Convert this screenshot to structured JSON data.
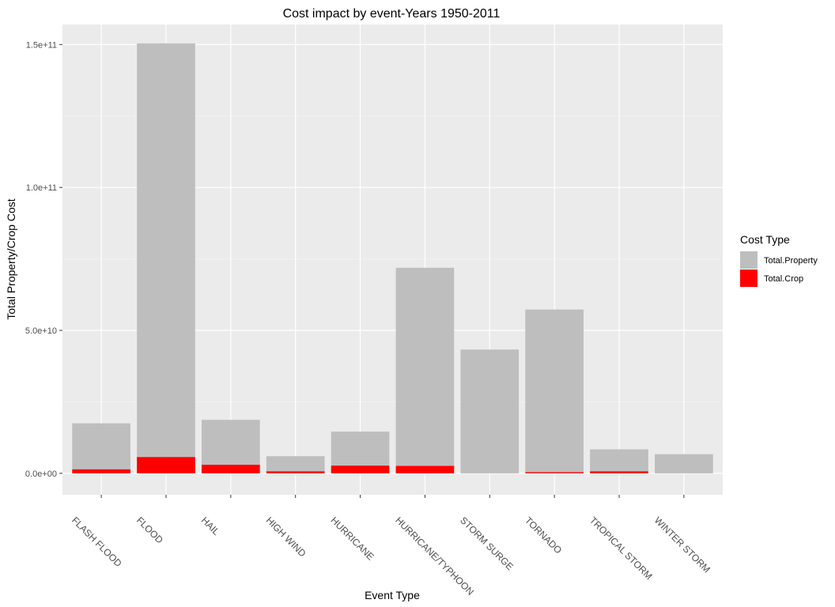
{
  "chart_data": {
    "type": "bar",
    "stacked": true,
    "title": "Cost impact by event-Years 1950-2011",
    "xlabel": "Event Type",
    "ylabel": "Total Property/Crop Cost",
    "ylim": [
      -7500000000,
      157000000000
    ],
    "y_ticks": [
      0,
      50000000000,
      100000000000,
      150000000000
    ],
    "y_tick_labels": [
      "0.0e+00",
      "5.0e+10",
      "1.0e+11",
      "1.5e+11"
    ],
    "categories": [
      "FLASH FLOOD",
      "FLOOD",
      "HAIL",
      "HIGH WIND",
      "HURRICANE",
      "HURRICANE/TYPHOON",
      "STORM SURGE",
      "TORNADO",
      "TROPICAL STORM",
      "WINTER STORM"
    ],
    "series": [
      {
        "name": "Total.Property",
        "color": "#bebebe",
        "values": [
          16100000000,
          144700000000,
          15700000000,
          5300000000,
          11900000000,
          69300000000,
          43300000000,
          56900000000,
          7700000000,
          6700000000
        ]
      },
      {
        "name": "Total.Crop",
        "color": "#ff0000",
        "values": [
          1400000000,
          5700000000,
          3000000000,
          700000000,
          2700000000,
          2600000000,
          0,
          400000000,
          700000000,
          0
        ]
      }
    ],
    "grid": true,
    "legend": {
      "title": "Cost Type",
      "position": "right"
    }
  }
}
